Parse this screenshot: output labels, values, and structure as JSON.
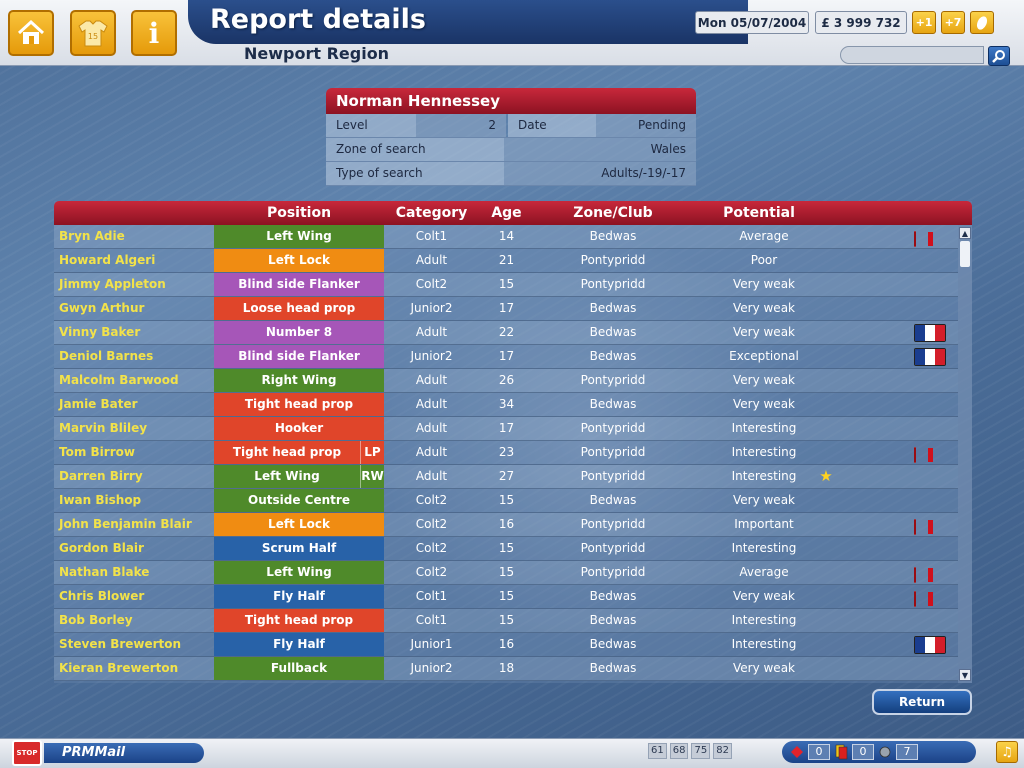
{
  "header": {
    "title": "Report details",
    "subtitle": "Newport Region",
    "date": "Mon 05/07/2004",
    "money": "£ 3 999 732",
    "plus1_label": "+1",
    "plus7_label": "+7",
    "nav_icons": [
      "home-icon",
      "shirt-icon",
      "info-icon"
    ],
    "shirt_number": "15",
    "info_glyph": "i"
  },
  "scout": {
    "name": "Norman Hennessey",
    "level_label": "Level",
    "level_value": "2",
    "date_label": "Date",
    "date_value": "Pending",
    "zone_label": "Zone of search",
    "zone_value": "Wales",
    "type_label": "Type of search",
    "type_value": "Adults/-19/-17"
  },
  "table": {
    "headers": {
      "position": "Position",
      "category": "Category",
      "age": "Age",
      "zone": "Zone/Club",
      "potential": "Potential"
    },
    "rows": [
      {
        "name": "Bryn Adie",
        "position": "Left Wing",
        "alt": "",
        "pos_color": "#4f8a2a",
        "category": "Colt1",
        "age": "14",
        "zone": "Bedwas",
        "potential": "Average",
        "star": "",
        "flag": "eng"
      },
      {
        "name": "Howard Algeri",
        "position": "Left Lock",
        "alt": "",
        "pos_color": "#f08c12",
        "category": "Adult",
        "age": "21",
        "zone": "Pontypridd",
        "potential": "Poor",
        "star": "",
        "flag": ""
      },
      {
        "name": "Jimmy Appleton",
        "position": "Blind side Flanker",
        "alt": "",
        "pos_color": "#a656b8",
        "category": "Colt2",
        "age": "15",
        "zone": "Pontypridd",
        "potential": "Very weak",
        "star": "",
        "flag": ""
      },
      {
        "name": "Gwyn Arthur",
        "position": "Loose head prop",
        "alt": "",
        "pos_color": "#e0452a",
        "category": "Junior2",
        "age": "17",
        "zone": "Bedwas",
        "potential": "Very weak",
        "star": "",
        "flag": ""
      },
      {
        "name": "Vinny Baker",
        "position": "Number 8",
        "alt": "",
        "pos_color": "#a656b8",
        "category": "Adult",
        "age": "22",
        "zone": "Bedwas",
        "potential": "Very weak",
        "star": "",
        "flag": "fra"
      },
      {
        "name": "Deniol Barnes",
        "position": "Blind side Flanker",
        "alt": "",
        "pos_color": "#a656b8",
        "category": "Junior2",
        "age": "17",
        "zone": "Bedwas",
        "potential": "Exceptional",
        "star": "",
        "flag": "fra"
      },
      {
        "name": "Malcolm Barwood",
        "position": "Right Wing",
        "alt": "",
        "pos_color": "#4f8a2a",
        "category": "Adult",
        "age": "26",
        "zone": "Pontypridd",
        "potential": "Very weak",
        "star": "",
        "flag": ""
      },
      {
        "name": "Jamie Bater",
        "position": "Tight head prop",
        "alt": "",
        "pos_color": "#e0452a",
        "category": "Adult",
        "age": "34",
        "zone": "Bedwas",
        "potential": "Very weak",
        "star": "",
        "flag": ""
      },
      {
        "name": "Marvin Bliley",
        "position": "Hooker",
        "alt": "",
        "pos_color": "#e0452a",
        "category": "Adult",
        "age": "17",
        "zone": "Pontypridd",
        "potential": "Interesting",
        "star": "",
        "flag": ""
      },
      {
        "name": "Tom Birrow",
        "position": "Tight head prop",
        "alt": "LP",
        "pos_color": "#e0452a",
        "category": "Adult",
        "age": "23",
        "zone": "Pontypridd",
        "potential": "Interesting",
        "star": "",
        "flag": "eng"
      },
      {
        "name": "Darren Birry",
        "position": "Left Wing",
        "alt": "RW",
        "pos_color": "#4f8a2a",
        "category": "Adult",
        "age": "27",
        "zone": "Pontypridd",
        "potential": "Interesting",
        "star": "★",
        "flag": ""
      },
      {
        "name": "Iwan Bishop",
        "position": "Outside Centre",
        "alt": "",
        "pos_color": "#4f8a2a",
        "category": "Colt2",
        "age": "15",
        "zone": "Bedwas",
        "potential": "Very weak",
        "star": "",
        "flag": ""
      },
      {
        "name": "John Benjamin Blair",
        "position": "Left Lock",
        "alt": "",
        "pos_color": "#f08c12",
        "category": "Colt2",
        "age": "16",
        "zone": "Pontypridd",
        "potential": "Important",
        "star": "",
        "flag": "eng"
      },
      {
        "name": "Gordon Blair",
        "position": "Scrum Half",
        "alt": "",
        "pos_color": "#2862a8",
        "category": "Colt2",
        "age": "15",
        "zone": "Pontypridd",
        "potential": "Interesting",
        "star": "",
        "flag": ""
      },
      {
        "name": "Nathan Blake",
        "position": "Left Wing",
        "alt": "",
        "pos_color": "#4f8a2a",
        "category": "Colt2",
        "age": "15",
        "zone": "Pontypridd",
        "potential": "Average",
        "star": "",
        "flag": "eng"
      },
      {
        "name": "Chris Blower",
        "position": "Fly Half",
        "alt": "",
        "pos_color": "#2862a8",
        "category": "Colt1",
        "age": "15",
        "zone": "Bedwas",
        "potential": "Very weak",
        "star": "",
        "flag": "eng"
      },
      {
        "name": "Bob Borley",
        "position": "Tight head prop",
        "alt": "",
        "pos_color": "#e0452a",
        "category": "Colt1",
        "age": "15",
        "zone": "Bedwas",
        "potential": "Interesting",
        "star": "",
        "flag": ""
      },
      {
        "name": "Steven Brewerton",
        "position": "Fly Half",
        "alt": "",
        "pos_color": "#2862a8",
        "category": "Junior1",
        "age": "16",
        "zone": "Bedwas",
        "potential": "Interesting",
        "star": "",
        "flag": "fra"
      },
      {
        "name": "Kieran Brewerton",
        "position": "Fullback",
        "alt": "",
        "pos_color": "#4f8a2a",
        "category": "Junior2",
        "age": "18",
        "zone": "Bedwas",
        "potential": "Very weak",
        "star": "",
        "flag": ""
      }
    ]
  },
  "return_label": "Return",
  "footer": {
    "mail_label": "PRMMail",
    "mail_icon_text": "STOP",
    "stats": [
      "61",
      "68",
      "75",
      "82"
    ],
    "injury_count": "0",
    "card_count": "0",
    "ball_count": "7",
    "music_glyph": "♫"
  }
}
